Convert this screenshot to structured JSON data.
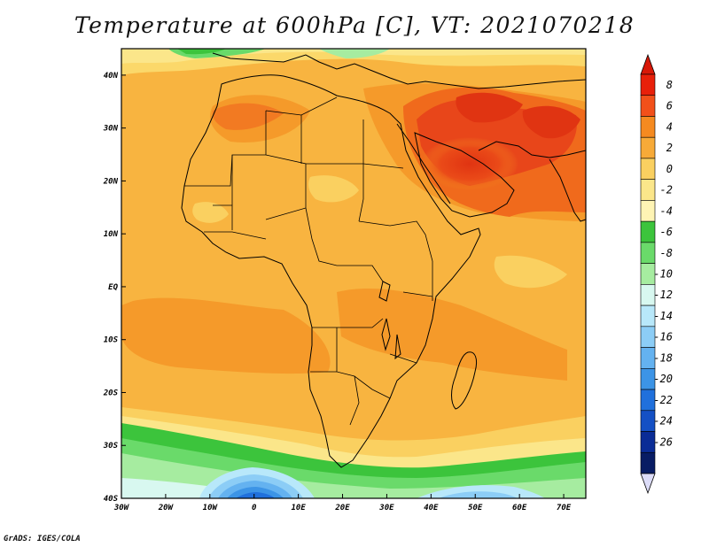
{
  "title": "Temperature at 600hPa [C], VT: 2021070218",
  "credit": "GrADS: IGES/COLA",
  "map": {
    "extent": {
      "lon_min": -30,
      "lon_max": 75,
      "lat_min": -40,
      "lat_max": 45
    },
    "lat_labels": [
      {
        "lat": 40,
        "label": "40N"
      },
      {
        "lat": 30,
        "label": "30N"
      },
      {
        "lat": 20,
        "label": "20N"
      },
      {
        "lat": 10,
        "label": "10N"
      },
      {
        "lat": 0,
        "label": "EQ"
      },
      {
        "lat": -10,
        "label": "10S"
      },
      {
        "lat": -20,
        "label": "20S"
      },
      {
        "lat": -30,
        "label": "30S"
      },
      {
        "lat": -40,
        "label": "40S"
      }
    ],
    "lon_labels": [
      {
        "lon": -30,
        "label": "30W"
      },
      {
        "lon": -20,
        "label": "20W"
      },
      {
        "lon": -10,
        "label": "10W"
      },
      {
        "lon": 0,
        "label": "0"
      },
      {
        "lon": 10,
        "label": "10E"
      },
      {
        "lon": 20,
        "label": "20E"
      },
      {
        "lon": 30,
        "label": "30E"
      },
      {
        "lon": 40,
        "label": "40E"
      },
      {
        "lon": 50,
        "label": "50E"
      },
      {
        "lon": 60,
        "label": "60E"
      },
      {
        "lon": 70,
        "label": "70E"
      }
    ]
  },
  "legend": {
    "levels": [
      "8",
      "6",
      "4",
      "2",
      "0",
      "-2",
      "-4",
      "-6",
      "-8",
      "-10",
      "-12",
      "-14",
      "-16",
      "-18",
      "-20",
      "-22",
      "-24",
      "-26"
    ],
    "colors": [
      "#e8200a",
      "#f2501a",
      "#f58a20",
      "#f7aa38",
      "#fad060",
      "#fbe68a",
      "#fef4b4",
      "#3cc43c",
      "#6ada6a",
      "#a6eca0",
      "#d8f8f0",
      "#b8e8fa",
      "#8ccdf6",
      "#64b2f0",
      "#3c94e6",
      "#2070dc",
      "#1450c4",
      "#0a2c96",
      "#081c64"
    ],
    "top_arrow_color": "#d81808",
    "bottom_arrow_color": "#dcdcf8"
  }
}
